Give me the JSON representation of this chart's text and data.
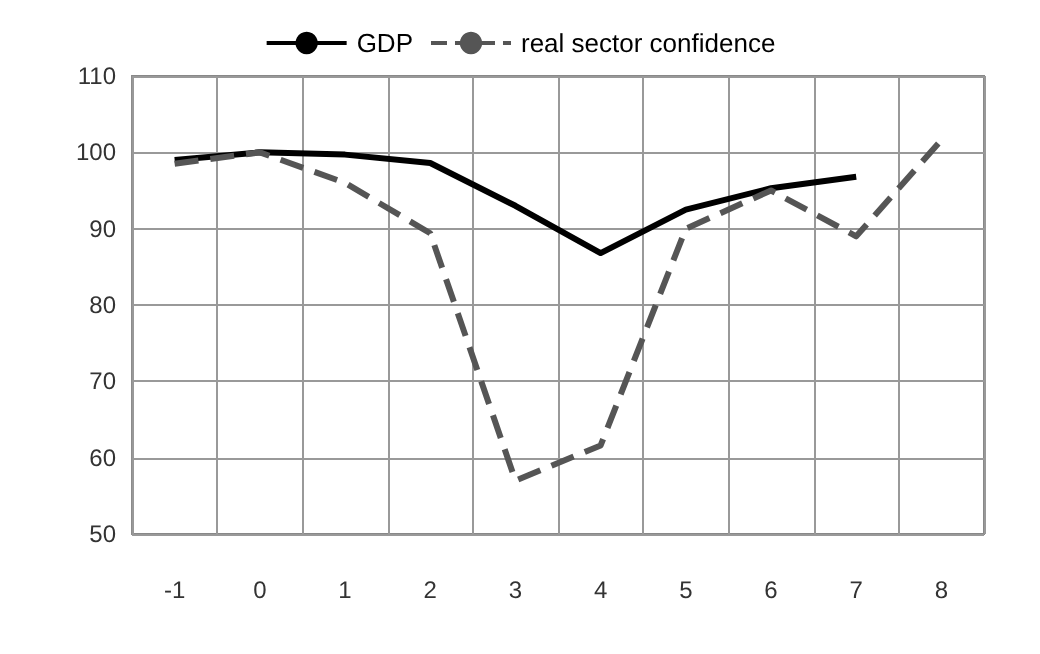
{
  "chart_data": {
    "type": "line",
    "categories": [
      "-1",
      "0",
      "1",
      "2",
      "3",
      "4",
      "5",
      "6",
      "7",
      "8"
    ],
    "series": [
      {
        "name": "GDP",
        "color": "#000000",
        "line_style": "solid",
        "values": [
          99,
          100,
          99.7,
          98.6,
          93,
          86.8,
          92.5,
          95.3,
          96.8,
          null
        ]
      },
      {
        "name": "real sector confidence",
        "color": "#555555",
        "line_style": "dashed",
        "values": [
          98.5,
          100,
          96,
          89.4,
          57,
          61.6,
          90,
          95,
          89,
          101.6
        ]
      }
    ],
    "ylim": [
      50,
      110
    ],
    "yticks": [
      50,
      60,
      70,
      80,
      90,
      100,
      110
    ],
    "grid": true,
    "legend": "top",
    "marker": "none"
  }
}
